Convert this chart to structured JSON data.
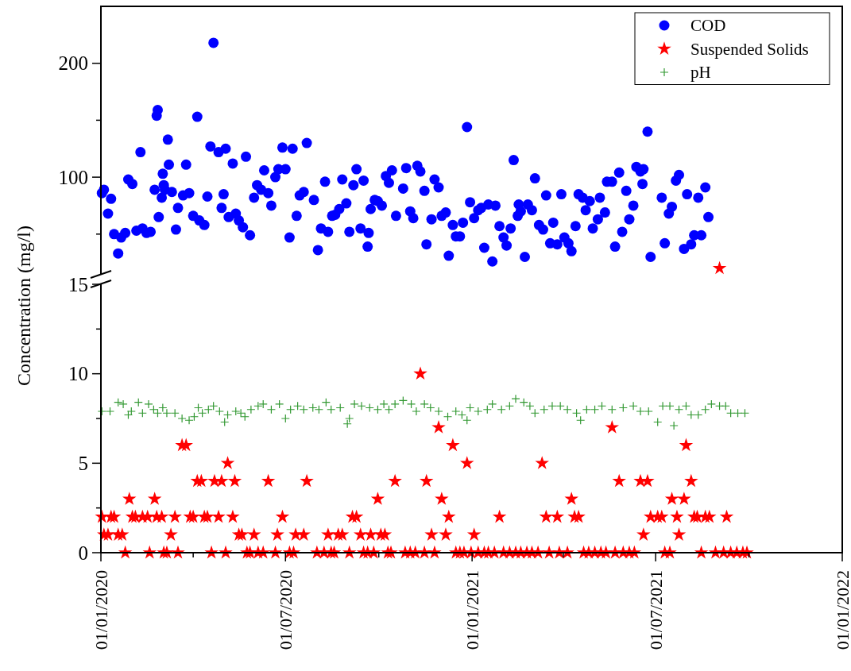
{
  "chart_data": [
    {
      "type": "scatter",
      "xlim": [
        "2020-01-01",
        "2022-01-01"
      ],
      "ylim": [
        15,
        250
      ],
      "yticks": [
        {
          "value": 50,
          "label": null
        },
        100,
        {
          "value": 150,
          "label": null
        },
        200
      ],
      "tick_labels": "y",
      "legend": "top right",
      "series": [
        {
          "name": "COD",
          "color": "#0000ff",
          "marker": "circle",
          "x": [
            "2020-01-02",
            "2020-01-04",
            "2020-01-08",
            "2020-01-11",
            "2020-01-14",
            "2020-01-18",
            "2020-01-21",
            "2020-01-25",
            "2020-01-28",
            "2020-02-01",
            "2020-02-05",
            "2020-02-09",
            "2020-02-11",
            "2020-02-15",
            "2020-02-19",
            "2020-02-23",
            "2020-02-25",
            "2020-02-26",
            "2020-02-27",
            "2020-03-01",
            "2020-03-02",
            "2020-03-03",
            "2020-03-04",
            "2020-03-07",
            "2020-03-08",
            "2020-03-11",
            "2020-03-15",
            "2020-03-17",
            "2020-03-22",
            "2020-03-25",
            "2020-03-28",
            "2020-04-01",
            "2020-04-05",
            "2020-04-07",
            "2020-04-12",
            "2020-04-15",
            "2020-04-18",
            "2020-04-21",
            "2020-04-26",
            "2020-04-29",
            "2020-05-01",
            "2020-05-03",
            "2020-05-06",
            "2020-05-10",
            "2020-05-13",
            "2020-05-16",
            "2020-05-20",
            "2020-05-23",
            "2020-05-27",
            "2020-05-31",
            "2020-06-03",
            "2020-06-07",
            "2020-06-10",
            "2020-06-14",
            "2020-06-17",
            "2020-06-21",
            "2020-06-24",
            "2020-06-28",
            "2020-07-01",
            "2020-07-05",
            "2020-07-08",
            "2020-07-12",
            "2020-07-15",
            "2020-07-19",
            "2020-07-22",
            "2020-07-29",
            "2020-08-02",
            "2020-08-05",
            "2020-08-09",
            "2020-08-12",
            "2020-08-16",
            "2020-08-19",
            "2020-08-23",
            "2020-08-26",
            "2020-08-30",
            "2020-09-02",
            "2020-09-06",
            "2020-09-09",
            "2020-09-13",
            "2020-09-16",
            "2020-09-20",
            "2020-09-21",
            "2020-09-23",
            "2020-09-27",
            "2020-09-30",
            "2020-10-04",
            "2020-10-08",
            "2020-10-11",
            "2020-10-14",
            "2020-10-18",
            "2020-10-25",
            "2020-10-28",
            "2020-11-01",
            "2020-11-04",
            "2020-11-08",
            "2020-11-11",
            "2020-11-15",
            "2020-11-17",
            "2020-11-22",
            "2020-11-25",
            "2020-11-29",
            "2020-12-02",
            "2020-12-06",
            "2020-12-09",
            "2020-12-13",
            "2020-12-16",
            "2020-12-20",
            "2020-12-23",
            "2020-12-27",
            "2020-12-30",
            "2021-01-03",
            "2021-01-07",
            "2021-01-10",
            "2021-01-13",
            "2021-01-17",
            "2021-01-21",
            "2021-01-24",
            "2021-01-28",
            "2021-02-01",
            "2021-02-04",
            "2021-02-08",
            "2021-02-11",
            "2021-02-15",
            "2021-02-16",
            "2021-02-18",
            "2021-02-22",
            "2021-02-25",
            "2021-03-01",
            "2021-03-04",
            "2021-03-08",
            "2021-03-12",
            "2021-03-15",
            "2021-03-19",
            "2021-03-22",
            "2021-03-26",
            "2021-03-30",
            "2021-04-02",
            "2021-04-06",
            "2021-04-09",
            "2021-04-13",
            "2021-04-16",
            "2021-04-20",
            "2021-04-23",
            "2021-04-27",
            "2021-04-30",
            "2021-05-05",
            "2021-05-07",
            "2021-05-12",
            "2021-05-14",
            "2021-05-19",
            "2021-05-22",
            "2021-05-26",
            "2021-05-29",
            "2021-06-02",
            "2021-06-05",
            "2021-06-09",
            "2021-06-12",
            "2021-06-16",
            "2021-06-18",
            "2021-06-19",
            "2021-06-23",
            "2021-06-26",
            "2021-07-07",
            "2021-07-10",
            "2021-07-14",
            "2021-07-17",
            "2021-07-21",
            "2021-07-24",
            "2021-07-29",
            "2021-08-01",
            "2021-08-05",
            "2021-08-08",
            "2021-08-12",
            "2021-08-15",
            "2021-08-19",
            "2021-08-22"
          ],
          "values": [
            86,
            89,
            68,
            81,
            50,
            33,
            47,
            51,
            98,
            94,
            53,
            122,
            55,
            51,
            52,
            89,
            154,
            159,
            65,
            82,
            103,
            93,
            89,
            133,
            111,
            87,
            54,
            73,
            84,
            111,
            86,
            66,
            153,
            62,
            58,
            83,
            127,
            218,
            122,
            73,
            85,
            125,
            65,
            112,
            68,
            62,
            56,
            118,
            49,
            82,
            93,
            89,
            106,
            86,
            75,
            100,
            107,
            126,
            107,
            47,
            125,
            66,
            84,
            87,
            130,
            80,
            36,
            55,
            96,
            52,
            66,
            67,
            72,
            98,
            77,
            52,
            93,
            107,
            55,
            97,
            39,
            51,
            72,
            80,
            79,
            75,
            101,
            95,
            106,
            66,
            90,
            108,
            70,
            64,
            110,
            105,
            88,
            41,
            63,
            98,
            91,
            66,
            69,
            31,
            58,
            48,
            48,
            60,
            144,
            78,
            64,
            71,
            73,
            38,
            76,
            26,
            75,
            57,
            47,
            40,
            55,
            115,
            66,
            76,
            70,
            30,
            76,
            71,
            99,
            58,
            54,
            84,
            42,
            60,
            41,
            85,
            47,
            42,
            35,
            57,
            85,
            82,
            71,
            79,
            55,
            63,
            82,
            69,
            96,
            96,
            39,
            104,
            52,
            88,
            63,
            75,
            109,
            105,
            94,
            107,
            140,
            30,
            82,
            42,
            68,
            74,
            97,
            102,
            37,
            85,
            41,
            49,
            82,
            49,
            91,
            65
          ]
        },
        {
          "name": "Suspended Solids",
          "color": "#ff0000",
          "marker": "star",
          "x": [
            "2021-09-02"
          ],
          "values": [
            20
          ]
        }
      ]
    },
    {
      "type": "scatter",
      "ylabel": "Concentration (mg/l)",
      "xlim": [
        "2020-01-01",
        "2022-01-01"
      ],
      "xticks": [
        {
          "value": "2020-01-01",
          "label": "01/01/2020"
        },
        {
          "value": "2020-04-01",
          "label": null
        },
        {
          "value": "2020-07-01",
          "label": "01/07/2020"
        },
        {
          "value": "2020-10-01",
          "label": null
        },
        {
          "value": "2021-01-01",
          "label": "01/01/2021"
        },
        {
          "value": "2021-04-01",
          "label": null
        },
        {
          "value": "2021-07-01",
          "label": "01/07/2021"
        },
        {
          "value": "2021-10-01",
          "label": null
        },
        {
          "value": "2022-01-01",
          "label": "01/01/2022"
        }
      ],
      "ylim": [
        0,
        15
      ],
      "yticks": [
        0,
        {
          "value": 2.5,
          "label": null
        },
        5,
        {
          "value": 7.5,
          "label": null
        },
        10,
        {
          "value": 12.5,
          "label": null
        },
        15
      ],
      "series": [
        {
          "name": "Suspended Solids",
          "color": "#ff0000",
          "marker": "star",
          "x": [
            "2020-01-02",
            "2020-01-04",
            "2020-01-08",
            "2020-01-11",
            "2020-01-14",
            "2020-01-18",
            "2020-01-22",
            "2020-01-25",
            "2020-01-29",
            "2020-02-01",
            "2020-02-04",
            "2020-02-11",
            "2020-02-16",
            "2020-02-18",
            "2020-02-23",
            "2020-02-25",
            "2020-03-01",
            "2020-03-03",
            "2020-03-06",
            "2020-03-10",
            "2020-03-14",
            "2020-03-17",
            "2020-03-21",
            "2020-03-25",
            "2020-03-29",
            "2020-04-01",
            "2020-04-05",
            "2020-04-09",
            "2020-04-12",
            "2020-04-15",
            "2020-04-19",
            "2020-04-22",
            "2020-04-26",
            "2020-04-29",
            "2020-05-03",
            "2020-05-05",
            "2020-05-10",
            "2020-05-12",
            "2020-05-16",
            "2020-05-19",
            "2020-05-24",
            "2020-05-27",
            "2020-05-31",
            "2020-06-04",
            "2020-06-09",
            "2020-06-14",
            "2020-06-21",
            "2020-06-23",
            "2020-06-28",
            "2020-07-05",
            "2020-07-09",
            "2020-07-11",
            "2020-07-19",
            "2020-07-22",
            "2020-08-01",
            "2020-08-08",
            "2020-08-12",
            "2020-08-15",
            "2020-08-18",
            "2020-08-22",
            "2020-08-26",
            "2020-09-02",
            "2020-09-05",
            "2020-09-09",
            "2020-09-13",
            "2020-09-16",
            "2020-09-20",
            "2020-09-23",
            "2020-09-26",
            "2020-09-30",
            "2020-10-03",
            "2020-10-07",
            "2020-10-10",
            "2020-10-13",
            "2020-10-17",
            "2020-10-27",
            "2020-11-01",
            "2020-11-06",
            "2020-11-11",
            "2020-11-15",
            "2020-11-17",
            "2020-11-22",
            "2020-11-25",
            "2020-11-29",
            "2020-12-02",
            "2020-12-06",
            "2020-12-09",
            "2020-12-13",
            "2020-12-16",
            "2020-12-20",
            "2020-12-24",
            "2020-12-27",
            "2020-12-31",
            "2021-01-03",
            "2021-01-07",
            "2021-01-13",
            "2021-01-17",
            "2021-01-23",
            "2021-01-28",
            "2021-02-01",
            "2021-02-07",
            "2021-02-13",
            "2021-02-18",
            "2021-02-24",
            "2021-03-01",
            "2021-03-07",
            "2021-03-11",
            "2021-03-15",
            "2021-03-18",
            "2021-03-26",
            "2021-03-28",
            "2021-04-05",
            "2021-04-09",
            "2021-04-12",
            "2021-04-16",
            "2021-04-21",
            "2021-04-26",
            "2021-05-02",
            "2021-05-08",
            "2021-05-13",
            "2021-05-19",
            "2021-05-22",
            "2021-05-26",
            "2021-05-30",
            "2021-06-05",
            "2021-06-10",
            "2021-06-16",
            "2021-06-19",
            "2021-06-23",
            "2021-06-26",
            "2021-07-03",
            "2021-07-07",
            "2021-07-10",
            "2021-07-15",
            "2021-07-17",
            "2021-07-22",
            "2021-07-24",
            "2021-07-29",
            "2021-07-31",
            "2021-08-05",
            "2021-08-08",
            "2021-08-11",
            "2021-08-15",
            "2021-08-19",
            "2021-08-23",
            "2021-08-29",
            "2021-09-06",
            "2021-09-09",
            "2021-09-13",
            "2021-09-19",
            "2021-09-25",
            "2021-09-29"
          ],
          "values": [
            2,
            1,
            1,
            2,
            2,
            1,
            1,
            0,
            3,
            2,
            2,
            2,
            2,
            0,
            3,
            2,
            2,
            0,
            0,
            1,
            2,
            0,
            6,
            6,
            2,
            2,
            4,
            4,
            2,
            2,
            0,
            4,
            2,
            4,
            0,
            5,
            2,
            4,
            1,
            1,
            0,
            0,
            1,
            0,
            0,
            4,
            0,
            1,
            2,
            0,
            0,
            1,
            1,
            4,
            0,
            0,
            1,
            0,
            0,
            1,
            1,
            0,
            2,
            2,
            1,
            0,
            0,
            1,
            0,
            3,
            1,
            1,
            0,
            0,
            4,
            0,
            0,
            0,
            10,
            0,
            4,
            1,
            0,
            7,
            3,
            1,
            2,
            6,
            0,
            0,
            0,
            5,
            0,
            1,
            0,
            0,
            0,
            0,
            2,
            0,
            0,
            0,
            0,
            0,
            0,
            0,
            5,
            2,
            0,
            2,
            0,
            0,
            3,
            2,
            2,
            0,
            0,
            0,
            0,
            0,
            7,
            0,
            4,
            0,
            0,
            0,
            4,
            1,
            4,
            2,
            2,
            2,
            0,
            0,
            3,
            2,
            1,
            3,
            6,
            4,
            2,
            2,
            0,
            2,
            2,
            0,
            0,
            2,
            0,
            0,
            0,
            0
          ]
        },
        {
          "name": "pH",
          "color": "#339933",
          "marker": "cross",
          "x": [
            "2020-01-02",
            "2020-01-10",
            "2020-01-18",
            "2020-01-23",
            "2020-01-28",
            "2020-01-31",
            "2020-02-07",
            "2020-02-11",
            "2020-02-17",
            "2020-02-22",
            "2020-02-26",
            "2020-03-02",
            "2020-03-06",
            "2020-03-14",
            "2020-03-21",
            "2020-03-28",
            "2020-04-02",
            "2020-04-06",
            "2020-04-10",
            "2020-04-16",
            "2020-04-21",
            "2020-04-27",
            "2020-05-02",
            "2020-05-05",
            "2020-05-13",
            "2020-05-18",
            "2020-05-22",
            "2020-05-28",
            "2020-06-04",
            "2020-06-09",
            "2020-06-17",
            "2020-06-25",
            "2020-07-01",
            "2020-07-06",
            "2020-07-13",
            "2020-07-19",
            "2020-07-28",
            "2020-08-03",
            "2020-08-10",
            "2020-08-15",
            "2020-08-24",
            "2020-08-31",
            "2020-09-02",
            "2020-09-07",
            "2020-09-14",
            "2020-09-22",
            "2020-09-30",
            "2020-10-06",
            "2020-10-11",
            "2020-10-17",
            "2020-10-25",
            "2020-11-02",
            "2020-11-07",
            "2020-11-15",
            "2020-11-21",
            "2020-11-29",
            "2020-12-08",
            "2020-12-16",
            "2020-12-22",
            "2020-12-27",
            "2020-12-30",
            "2021-01-07",
            "2021-01-16",
            "2021-01-21",
            "2021-01-30",
            "2021-02-07",
            "2021-02-13",
            "2021-02-21",
            "2021-02-27",
            "2021-03-04",
            "2021-03-13",
            "2021-03-21",
            "2021-03-29",
            "2021-04-05",
            "2021-04-14",
            "2021-04-18",
            "2021-04-24",
            "2021-05-02",
            "2021-05-09",
            "2021-05-19",
            "2021-05-30",
            "2021-06-09",
            "2021-06-16",
            "2021-06-24",
            "2021-07-03",
            "2021-07-08",
            "2021-07-15",
            "2021-07-19",
            "2021-07-24",
            "2021-07-31",
            "2021-08-05",
            "2021-08-12",
            "2021-08-19",
            "2021-08-25",
            "2021-09-02",
            "2021-09-08",
            "2021-09-13",
            "2021-09-20",
            "2021-09-27"
          ],
          "values": [
            7.9,
            7.9,
            8.4,
            8.3,
            7.7,
            7.9,
            8.4,
            7.8,
            8.3,
            8.0,
            7.8,
            8.1,
            7.8,
            7.8,
            7.5,
            7.4,
            7.6,
            8.1,
            7.8,
            8.0,
            8.2,
            7.9,
            7.3,
            7.7,
            7.9,
            7.8,
            7.6,
            8.0,
            8.2,
            8.3,
            8.0,
            8.3,
            7.5,
            8.0,
            8.2,
            8.0,
            8.1,
            8.0,
            8.4,
            8.0,
            8.1,
            7.2,
            7.5,
            8.3,
            8.2,
            8.1,
            8.0,
            8.3,
            8.0,
            8.3,
            8.5,
            8.3,
            7.9,
            8.3,
            8.1,
            7.9,
            7.6,
            7.9,
            7.7,
            7.4,
            8.1,
            7.9,
            8.0,
            8.3,
            8.0,
            8.2,
            8.6,
            8.4,
            8.2,
            7.8,
            8.0,
            8.2,
            8.2,
            8.0,
            7.8,
            7.4,
            8.0,
            8.0,
            8.2,
            8.0,
            8.1,
            8.2,
            7.9,
            7.9,
            7.3,
            8.2,
            8.2,
            7.1,
            8.0,
            8.2,
            7.7,
            7.7,
            8.0,
            8.3,
            8.2,
            8.2,
            7.8,
            7.8,
            7.8
          ]
        }
      ]
    }
  ]
}
